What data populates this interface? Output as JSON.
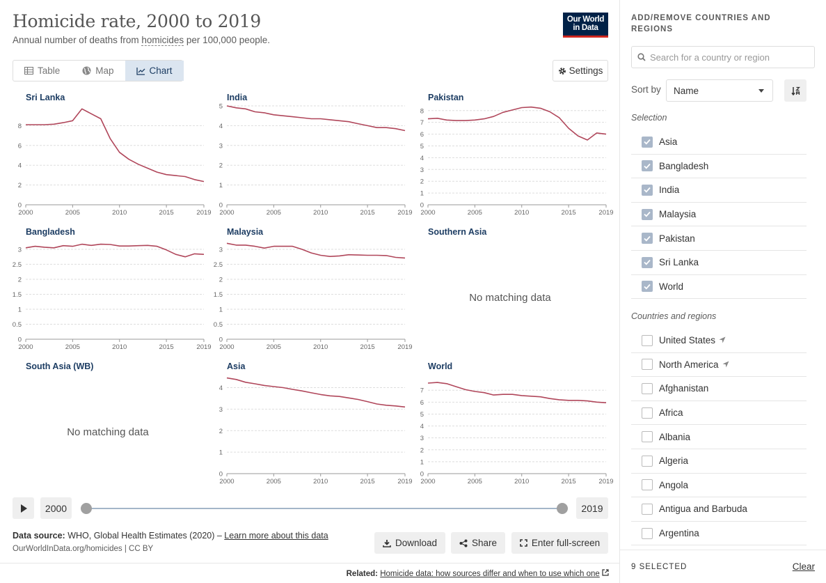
{
  "header": {
    "title": "Homicide rate, 2000 to 2019",
    "subtitle_before": "Annual number of deaths from ",
    "subtitle_link": "homicides",
    "subtitle_after": " per 100,000 people.",
    "logo_line1": "Our World",
    "logo_line2": "in Data"
  },
  "tabs": [
    {
      "label": "Table",
      "icon": "table-icon"
    },
    {
      "label": "Map",
      "icon": "globe-icon"
    },
    {
      "label": "Chart",
      "icon": "line-chart-icon",
      "active": true
    }
  ],
  "settings_label": "Settings",
  "colors": {
    "line": "#b0465a",
    "grid": "#dddddd",
    "axis": "#666666",
    "title": "#1d3d63"
  },
  "chart_data": [
    {
      "type": "line",
      "title": "Sri Lanka",
      "x_ticks": [
        "2000",
        "2005",
        "2010",
        "2015",
        "2019"
      ],
      "y_ticks": [
        "0",
        "2",
        "4",
        "6",
        "8"
      ],
      "ylim": [
        0,
        10
      ],
      "x": [
        2000,
        2001,
        2002,
        2003,
        2004,
        2005,
        2006,
        2007,
        2008,
        2009,
        2010,
        2011,
        2012,
        2013,
        2014,
        2015,
        2016,
        2017,
        2018,
        2019
      ],
      "values": [
        8.1,
        8.1,
        8.1,
        8.15,
        8.3,
        8.5,
        9.7,
        9.2,
        8.7,
        6.7,
        5.3,
        4.6,
        4.1,
        3.7,
        3.3,
        3.05,
        2.95,
        2.85,
        2.55,
        2.35
      ]
    },
    {
      "type": "line",
      "title": "India",
      "x_ticks": [
        "2000",
        "2005",
        "2010",
        "2015",
        "2019"
      ],
      "y_ticks": [
        "0",
        "1",
        "2",
        "3",
        "4",
        "5"
      ],
      "ylim": [
        0,
        5
      ],
      "x": [
        2000,
        2001,
        2002,
        2003,
        2004,
        2005,
        2006,
        2007,
        2008,
        2009,
        2010,
        2011,
        2012,
        2013,
        2014,
        2015,
        2016,
        2017,
        2018,
        2019
      ],
      "values": [
        5.0,
        4.9,
        4.85,
        4.7,
        4.65,
        4.55,
        4.5,
        4.45,
        4.4,
        4.35,
        4.35,
        4.3,
        4.25,
        4.2,
        4.1,
        4.0,
        3.9,
        3.9,
        3.85,
        3.75
      ]
    },
    {
      "type": "line",
      "title": "Pakistan",
      "x_ticks": [
        "2000",
        "2005",
        "2010",
        "2015",
        "2019"
      ],
      "y_ticks": [
        "0",
        "1",
        "2",
        "3",
        "4",
        "5",
        "6",
        "7",
        "8"
      ],
      "ylim": [
        0,
        8.4
      ],
      "x": [
        2000,
        2001,
        2002,
        2003,
        2004,
        2005,
        2006,
        2007,
        2008,
        2009,
        2010,
        2011,
        2012,
        2013,
        2014,
        2015,
        2016,
        2017,
        2018,
        2019
      ],
      "values": [
        7.3,
        7.35,
        7.2,
        7.15,
        7.15,
        7.2,
        7.3,
        7.5,
        7.85,
        8.05,
        8.25,
        8.3,
        8.2,
        7.9,
        7.4,
        6.5,
        5.85,
        5.5,
        6.1,
        6.0
      ]
    },
    {
      "type": "line",
      "title": "Bangladesh",
      "x_ticks": [
        "2000",
        "2005",
        "2010",
        "2015",
        "2019"
      ],
      "y_ticks": [
        "0",
        "0.5",
        "1",
        "1.5",
        "2",
        "2.5",
        "3"
      ],
      "ylim": [
        0,
        3.3
      ],
      "x": [
        2000,
        2001,
        2002,
        2003,
        2004,
        2005,
        2006,
        2007,
        2008,
        2009,
        2010,
        2011,
        2012,
        2013,
        2014,
        2015,
        2016,
        2017,
        2018,
        2019
      ],
      "values": [
        3.05,
        3.1,
        3.07,
        3.05,
        3.12,
        3.1,
        3.17,
        3.13,
        3.17,
        3.16,
        3.11,
        3.11,
        3.12,
        3.13,
        3.1,
        2.98,
        2.83,
        2.75,
        2.85,
        2.83
      ]
    },
    {
      "type": "line",
      "title": "Malaysia",
      "x_ticks": [
        "2000",
        "2005",
        "2010",
        "2015",
        "2019"
      ],
      "y_ticks": [
        "0",
        "0.5",
        "1",
        "1.5",
        "2",
        "2.5",
        "3"
      ],
      "ylim": [
        0,
        3.3
      ],
      "x": [
        2000,
        2001,
        2002,
        2003,
        2004,
        2005,
        2006,
        2007,
        2008,
        2009,
        2010,
        2011,
        2012,
        2013,
        2014,
        2015,
        2016,
        2017,
        2018,
        2019
      ],
      "values": [
        3.2,
        3.14,
        3.14,
        3.1,
        3.04,
        3.1,
        3.1,
        3.1,
        3.0,
        2.88,
        2.8,
        2.76,
        2.78,
        2.82,
        2.81,
        2.8,
        2.8,
        2.79,
        2.73,
        2.71
      ]
    },
    {
      "type": "line",
      "title": "Southern Asia",
      "no_data": "No matching data"
    },
    {
      "type": "line",
      "title": "South Asia (WB)",
      "no_data": "No matching data"
    },
    {
      "type": "line",
      "title": "Asia",
      "x_ticks": [
        "2000",
        "2005",
        "2010",
        "2015",
        "2019"
      ],
      "y_ticks": [
        "0",
        "1",
        "2",
        "3",
        "4"
      ],
      "ylim": [
        0,
        4.6
      ],
      "x": [
        2000,
        2001,
        2002,
        2003,
        2004,
        2005,
        2006,
        2007,
        2008,
        2009,
        2010,
        2011,
        2012,
        2013,
        2014,
        2015,
        2016,
        2017,
        2018,
        2019
      ],
      "values": [
        4.45,
        4.38,
        4.25,
        4.18,
        4.1,
        4.05,
        4.0,
        3.92,
        3.85,
        3.76,
        3.68,
        3.62,
        3.59,
        3.52,
        3.45,
        3.35,
        3.24,
        3.18,
        3.15,
        3.1
      ]
    },
    {
      "type": "line",
      "title": "World",
      "x_ticks": [
        "2000",
        "2005",
        "2010",
        "2015",
        "2019"
      ],
      "y_ticks": [
        "0",
        "1",
        "2",
        "3",
        "4",
        "5",
        "6",
        "7"
      ],
      "ylim": [
        0,
        8.3
      ],
      "x": [
        2000,
        2001,
        2002,
        2003,
        2004,
        2005,
        2006,
        2007,
        2008,
        2009,
        2010,
        2011,
        2012,
        2013,
        2014,
        2015,
        2016,
        2017,
        2018,
        2019
      ],
      "values": [
        7.6,
        7.65,
        7.55,
        7.3,
        7.05,
        6.9,
        6.8,
        6.6,
        6.65,
        6.65,
        6.55,
        6.5,
        6.45,
        6.3,
        6.2,
        6.15,
        6.15,
        6.1,
        6.0,
        5.95
      ]
    }
  ],
  "timeline": {
    "start_year": "2000",
    "end_year": "2019"
  },
  "source": {
    "label": "Data source:",
    "text": " WHO, Global Health Estimates (2020) – ",
    "link": "Learn more about this data",
    "citation": "OurWorldInData.org/homicides | CC BY"
  },
  "actions": {
    "download": "Download",
    "share": "Share",
    "fullscreen": "Enter full-screen"
  },
  "footer": {
    "related_label": "Related:",
    "related_link": "Homicide data: how sources differ and when to use which one"
  },
  "sidebar": {
    "title": "ADD/REMOVE COUNTRIES AND REGIONS",
    "search_placeholder": "Search for a country or region",
    "sort_label": "Sort by",
    "sort_value": "Name",
    "selection_label": "Selection",
    "selected": [
      "Asia",
      "Bangladesh",
      "India",
      "Malaysia",
      "Pakistan",
      "Sri Lanka",
      "World"
    ],
    "regions_label": "Countries and regions",
    "regions": [
      {
        "name": "United States",
        "locate": true
      },
      {
        "name": "North America",
        "locate": true
      },
      {
        "name": "Afghanistan"
      },
      {
        "name": "Africa"
      },
      {
        "name": "Albania"
      },
      {
        "name": "Algeria"
      },
      {
        "name": "Angola"
      },
      {
        "name": "Antigua and Barbuda"
      },
      {
        "name": "Argentina"
      }
    ],
    "selected_count": "9 SELECTED",
    "clear_label": "Clear"
  }
}
